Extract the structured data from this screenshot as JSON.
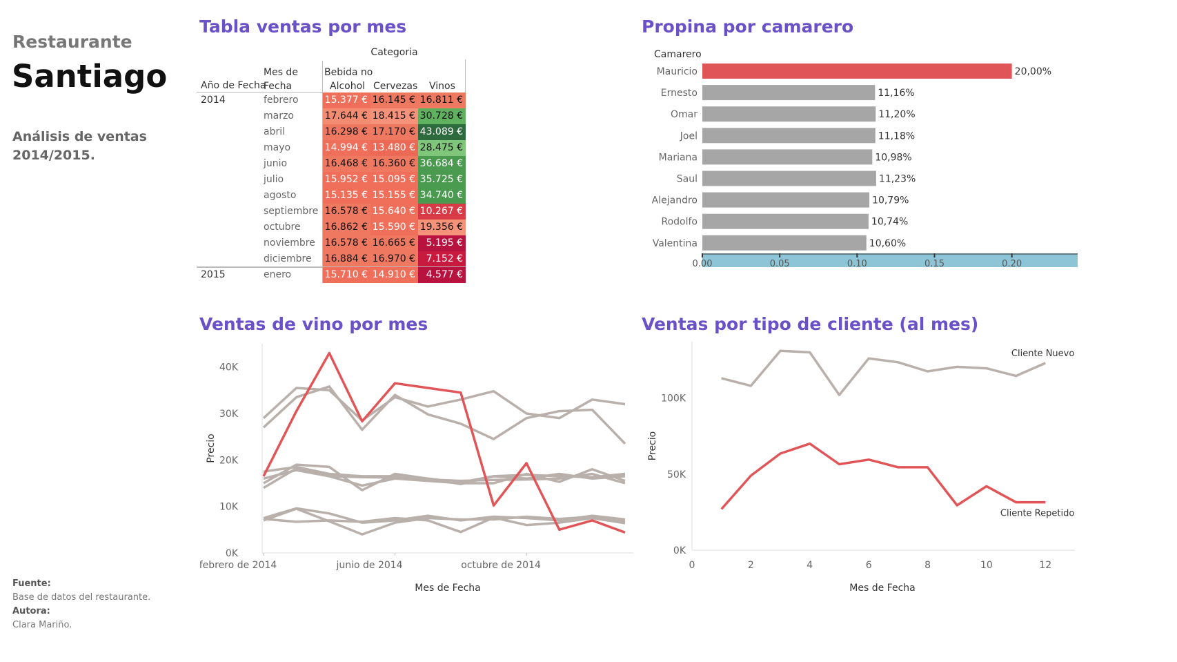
{
  "sidebar": {
    "subtitle": "Restaurante",
    "title": "Santiago",
    "description": "Análisis de ventas 2014/2015.",
    "source_label": "Fuente",
    "source_value": "Base de datos del restaurante.",
    "author_label": "Autora:",
    "author_value": "Clara Mariño."
  },
  "colors": {
    "title": "#6a51c8",
    "highlight": "#e05557",
    "gray": "#b9b0ab",
    "bar_gray": "#a6a6a6",
    "axis_band": "#8ec5d6"
  },
  "chart_data": [
    {
      "type": "table",
      "title": "Tabla ventas por mes",
      "column_group": "Categoria",
      "row_headers": [
        "Año de Fecha",
        "Mes de Fecha"
      ],
      "columns": [
        "Bebida no Alcohol",
        "Cervezas",
        "Vinos"
      ],
      "rows": [
        {
          "year": "2014",
          "month": "febrero",
          "values": [
            "15.377 €",
            "16.145 €",
            "16.811 €"
          ],
          "num": [
            15377,
            16145,
            16811
          ]
        },
        {
          "year": "",
          "month": "marzo",
          "values": [
            "17.644 €",
            "18.415 €",
            "30.728 €"
          ],
          "num": [
            17644,
            18415,
            30728
          ]
        },
        {
          "year": "",
          "month": "abril",
          "values": [
            "16.298 €",
            "17.170 €",
            "43.089 €"
          ],
          "num": [
            16298,
            17170,
            43089
          ]
        },
        {
          "year": "",
          "month": "mayo",
          "values": [
            "14.994 €",
            "13.480 €",
            "28.475 €"
          ],
          "num": [
            14994,
            13480,
            28475
          ]
        },
        {
          "year": "",
          "month": "junio",
          "values": [
            "16.468 €",
            "16.360 €",
            "36.684 €"
          ],
          "num": [
            16468,
            16360,
            36684
          ]
        },
        {
          "year": "",
          "month": "julio",
          "values": [
            "15.952 €",
            "15.095 €",
            "35.725 €"
          ],
          "num": [
            15952,
            15095,
            35725
          ]
        },
        {
          "year": "",
          "month": "agosto",
          "values": [
            "15.135 €",
            "15.155 €",
            "34.740 €"
          ],
          "num": [
            15135,
            15155,
            34740
          ]
        },
        {
          "year": "",
          "month": "septiembre",
          "values": [
            "16.578 €",
            "15.640 €",
            "10.267 €"
          ],
          "num": [
            16578,
            15640,
            10267
          ]
        },
        {
          "year": "",
          "month": "octubre",
          "values": [
            "16.862 €",
            "15.590 €",
            "19.356 €"
          ],
          "num": [
            16862,
            15590,
            19356
          ]
        },
        {
          "year": "",
          "month": "noviembre",
          "values": [
            "16.578 €",
            "16.665 €",
            "5.195 €"
          ],
          "num": [
            16578,
            16665,
            5195
          ]
        },
        {
          "year": "",
          "month": "diciembre",
          "values": [
            "16.884 €",
            "16.970 €",
            "7.152 €"
          ],
          "num": [
            16884,
            16970,
            7152
          ]
        },
        {
          "year": "2015",
          "month": "enero",
          "values": [
            "15.710 €",
            "14.910 €",
            "4.577 €"
          ],
          "num": [
            15710,
            14910,
            4577
          ]
        }
      ]
    },
    {
      "type": "bar",
      "title": "Propina por camarero",
      "category_label": "Camarero",
      "categories": [
        "Mauricio",
        "Ernesto",
        "Omar",
        "Joel",
        "Mariana",
        "Saul",
        "Alejandro",
        "Rodolfo",
        "Valentina"
      ],
      "values": [
        0.2,
        0.1116,
        0.112,
        0.1118,
        0.1098,
        0.1123,
        0.1079,
        0.1074,
        0.106
      ],
      "labels": [
        "20,00%",
        "11,16%",
        "11,20%",
        "11,18%",
        "10,98%",
        "11,23%",
        "10,79%",
        "10,74%",
        "10,60%"
      ],
      "highlight": "Mauricio",
      "xticks": [
        "0.00",
        "0.05",
        "0.10",
        "0.15",
        "0.20"
      ],
      "xlim": [
        0,
        0.2425
      ]
    },
    {
      "type": "line",
      "title": "Ventas de vino por mes",
      "xlabel": "Mes de Fecha",
      "ylabel": "Precio",
      "x": [
        "2014-02",
        "2014-03",
        "2014-04",
        "2014-05",
        "2014-06",
        "2014-07",
        "2014-08",
        "2014-09",
        "2014-10",
        "2014-11",
        "2014-12",
        "2015-01"
      ],
      "xticks": [
        {
          "pos": 0,
          "label": "febrero de 2014"
        },
        {
          "pos": 4,
          "label": "junio de 2014"
        },
        {
          "pos": 8,
          "label": "octubre de 2014"
        }
      ],
      "yticks": [
        "0K",
        "10K",
        "20K",
        "30K",
        "40K"
      ],
      "ylim": [
        0,
        45000
      ],
      "series": [
        {
          "highlight": true,
          "values": [
            16500,
            30500,
            43000,
            28300,
            36500,
            35500,
            34500,
            10200,
            19300,
            5000,
            7000,
            4400
          ]
        },
        {
          "highlight": false,
          "values": [
            29000,
            35500,
            35000,
            28500,
            33500,
            31500,
            33000,
            34800,
            30000,
            29000,
            33000,
            32000
          ]
        },
        {
          "highlight": false,
          "values": [
            27000,
            33500,
            35800,
            26500,
            34000,
            29800,
            27800,
            24500,
            29000,
            30500,
            30800,
            23500
          ]
        },
        {
          "highlight": false,
          "values": [
            17500,
            18500,
            17000,
            16500,
            16500,
            16000,
            15200,
            16500,
            16800,
            16500,
            16300,
            17000
          ]
        },
        {
          "highlight": false,
          "values": [
            16000,
            17800,
            16500,
            14500,
            16000,
            15500,
            15000,
            15000,
            17000,
            15300,
            18000,
            15500
          ]
        },
        {
          "highlight": false,
          "values": [
            15000,
            19000,
            18500,
            13500,
            17000,
            16000,
            14800,
            16500,
            16000,
            17000,
            16000,
            16500
          ]
        },
        {
          "highlight": false,
          "values": [
            14000,
            18200,
            16500,
            16300,
            16200,
            15800,
            15500,
            15700,
            15800,
            16000,
            17000,
            15000
          ]
        },
        {
          "highlight": false,
          "values": [
            7500,
            9600,
            8500,
            6500,
            7000,
            8000,
            7000,
            7800,
            7500,
            7000,
            8000,
            7200
          ]
        },
        {
          "highlight": false,
          "values": [
            7300,
            6700,
            7000,
            6700,
            7500,
            7000,
            4500,
            7600,
            6000,
            6500,
            7500,
            6400
          ]
        },
        {
          "highlight": false,
          "values": [
            7000,
            9500,
            6800,
            4000,
            6500,
            7500,
            7200,
            7200,
            7800,
            7300,
            7800,
            6700
          ]
        }
      ]
    },
    {
      "type": "line",
      "title": "Ventas por tipo de cliente (al mes)",
      "xlabel": "Mes de Fecha",
      "ylabel": "Precio",
      "xticks": [
        "0",
        "2",
        "4",
        "6",
        "8",
        "10",
        "12"
      ],
      "xlim": [
        0,
        13
      ],
      "yticks": [
        "0K",
        "50K",
        "100K"
      ],
      "ylim": [
        0,
        137000
      ],
      "series": [
        {
          "name": "Cliente Nuevo",
          "x": [
            1,
            2,
            3,
            4,
            5,
            6,
            7,
            8,
            9,
            10,
            11,
            12
          ],
          "values": [
            113000,
            108000,
            131000,
            130000,
            102000,
            126000,
            123500,
            117500,
            120500,
            119500,
            114500,
            123000
          ]
        },
        {
          "name": "Cliente Repetido",
          "x": [
            1,
            2,
            3,
            4,
            5,
            6,
            7,
            8,
            9,
            10,
            11,
            12
          ],
          "values": [
            27000,
            49000,
            63500,
            70000,
            56500,
            59500,
            54500,
            54500,
            29500,
            42000,
            31500,
            31500
          ]
        }
      ]
    }
  ]
}
